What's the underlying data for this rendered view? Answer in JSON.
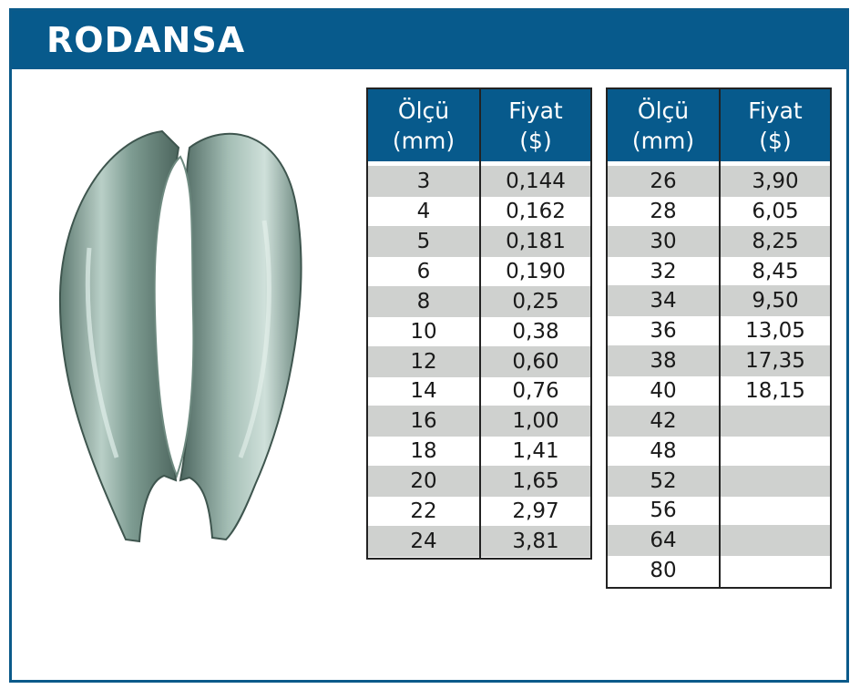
{
  "title": "RODANSA",
  "product_image": {
    "icon": "wire-rope-thimble-icon"
  },
  "colors": {
    "header": "#075a8c",
    "shade": "#cfd1cf",
    "border": "#0b5a8a"
  },
  "table_left": {
    "headers": {
      "size": [
        "Ölçü",
        "(mm)"
      ],
      "price": [
        "Fiyat",
        "($)"
      ]
    },
    "rows": [
      {
        "size": "3",
        "price": "0,144"
      },
      {
        "size": "4",
        "price": "0,162"
      },
      {
        "size": "5",
        "price": "0,181"
      },
      {
        "size": "6",
        "price": "0,190"
      },
      {
        "size": "8",
        "price": "0,25"
      },
      {
        "size": "10",
        "price": "0,38"
      },
      {
        "size": "12",
        "price": "0,60"
      },
      {
        "size": "14",
        "price": "0,76"
      },
      {
        "size": "16",
        "price": "1,00"
      },
      {
        "size": "18",
        "price": "1,41"
      },
      {
        "size": "20",
        "price": "1,65"
      },
      {
        "size": "22",
        "price": "2,97"
      },
      {
        "size": "24",
        "price": "3,81"
      }
    ]
  },
  "table_right": {
    "headers": {
      "size": [
        "Ölçü",
        "(mm)"
      ],
      "price": [
        "Fiyat",
        "($)"
      ]
    },
    "rows": [
      {
        "size": "26",
        "price": "3,90"
      },
      {
        "size": "28",
        "price": "6,05"
      },
      {
        "size": "30",
        "price": "8,25"
      },
      {
        "size": "32",
        "price": "8,45"
      },
      {
        "size": "34",
        "price": "9,50"
      },
      {
        "size": "36",
        "price": "13,05"
      },
      {
        "size": "38",
        "price": "17,35"
      },
      {
        "size": "40",
        "price": "18,15"
      },
      {
        "size": "42",
        "price": ""
      },
      {
        "size": "48",
        "price": ""
      },
      {
        "size": "52",
        "price": ""
      },
      {
        "size": "56",
        "price": ""
      },
      {
        "size": "64",
        "price": ""
      },
      {
        "size": "80",
        "price": ""
      }
    ]
  }
}
